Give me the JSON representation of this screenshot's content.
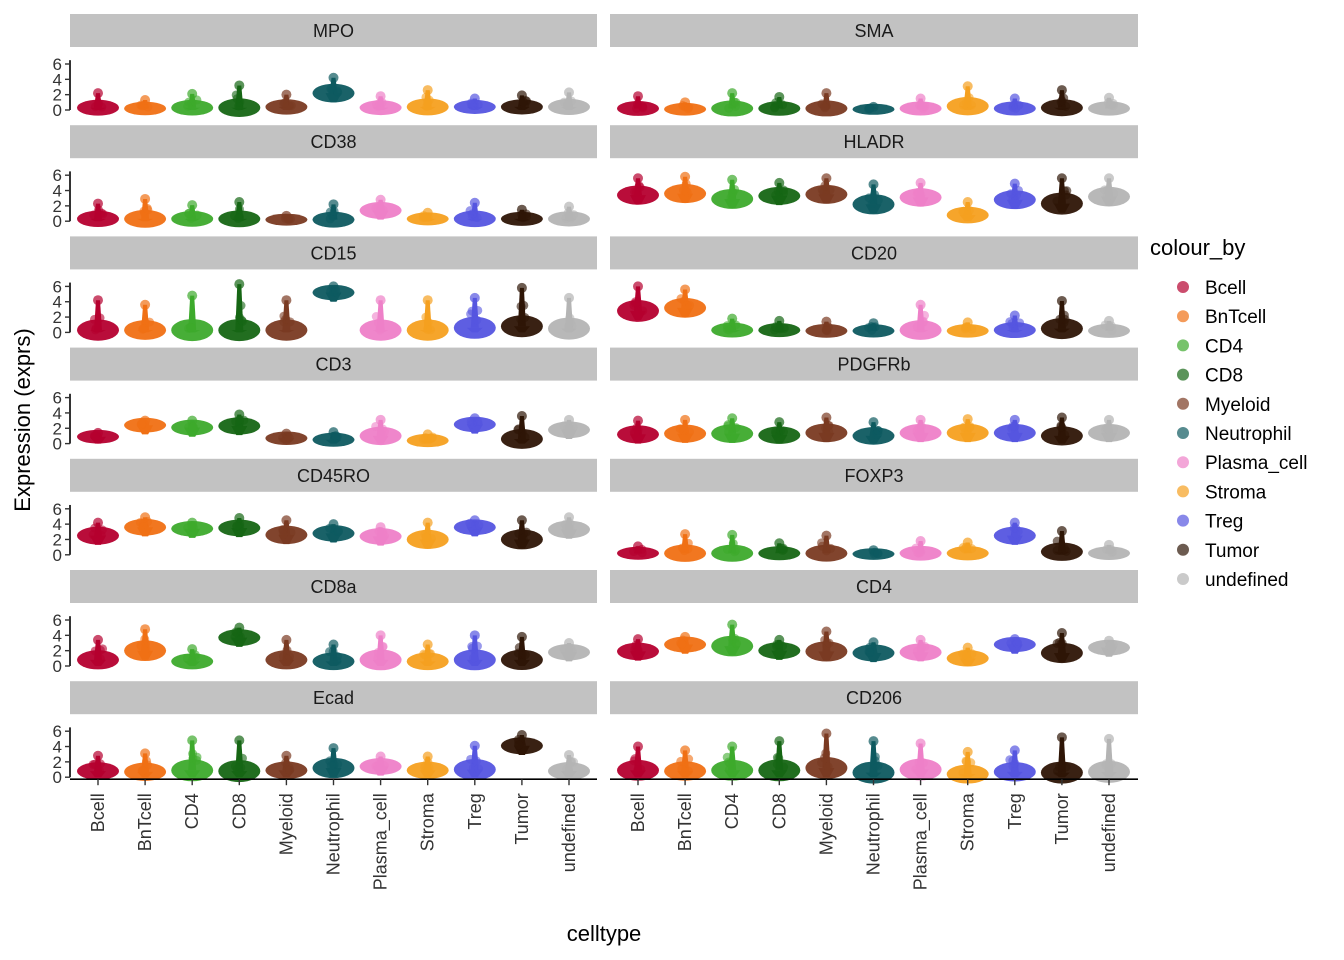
{
  "chart_data": {
    "type": "violin",
    "xlabel": "celltype",
    "ylabel": "Expression (exprs)",
    "ylim": [
      0,
      6.5
    ],
    "yticks": [
      0,
      2,
      4,
      6
    ],
    "facet_layout": {
      "cols": 2,
      "rows": 7
    },
    "categories": [
      "Bcell",
      "BnTcell",
      "CD4",
      "CD8",
      "Myeloid",
      "Neutrophil",
      "Plasma_cell",
      "Stroma",
      "Treg",
      "Tumor",
      "undefined"
    ],
    "legend": {
      "title": "colour_by",
      "placement": "right",
      "entries": [
        {
          "label": "Bcell",
          "color": "#B5002F"
        },
        {
          "label": "BnTcell",
          "color": "#F07014"
        },
        {
          "label": "CD4",
          "color": "#3DAA2C"
        },
        {
          "label": "CD8",
          "color": "#166614"
        },
        {
          "label": "Myeloid",
          "color": "#7A3A22"
        },
        {
          "label": "Neutrophil",
          "color": "#0E5A60"
        },
        {
          "label": "Plasma_cell",
          "color": "#EE80C8"
        },
        {
          "label": "Stroma",
          "color": "#F5A020"
        },
        {
          "label": "Treg",
          "color": "#5555E0"
        },
        {
          "label": "Tumor",
          "color": "#2E1506"
        },
        {
          "label": "undefined",
          "color": "#B4B4B4"
        }
      ]
    },
    "panels": [
      {
        "marker": "MPO",
        "medians": [
          0.3,
          0.2,
          0.3,
          0.3,
          0.4,
          2.2,
          0.3,
          0.4,
          0.4,
          0.4,
          0.4
        ],
        "maxima": [
          2.2,
          1.3,
          2.1,
          3.2,
          2.0,
          4.2,
          1.8,
          2.6,
          1.5,
          1.9,
          2.3
        ]
      },
      {
        "marker": "SMA",
        "medians": [
          0.2,
          0.1,
          0.2,
          0.2,
          0.2,
          0.1,
          0.2,
          0.5,
          0.2,
          0.3,
          0.2
        ],
        "maxima": [
          1.8,
          1.0,
          2.2,
          1.7,
          2.2,
          0.4,
          1.5,
          3.1,
          1.5,
          2.6,
          1.6
        ]
      },
      {
        "marker": "CD38",
        "medians": [
          0.3,
          0.3,
          0.3,
          0.3,
          0.2,
          0.2,
          1.4,
          0.3,
          0.3,
          0.3,
          0.3
        ],
        "maxima": [
          2.3,
          2.9,
          2.1,
          2.5,
          0.7,
          2.2,
          2.8,
          1.1,
          2.4,
          1.5,
          1.9
        ]
      },
      {
        "marker": "HLADR",
        "medians": [
          3.4,
          3.6,
          2.9,
          3.3,
          3.5,
          2.2,
          3.1,
          0.8,
          2.8,
          2.3,
          3.2
        ],
        "maxima": [
          5.6,
          5.8,
          5.4,
          5.0,
          5.6,
          4.8,
          5.0,
          2.5,
          4.9,
          5.6,
          5.6
        ]
      },
      {
        "marker": "CD15",
        "medians": [
          0.3,
          0.3,
          0.3,
          0.3,
          0.3,
          5.2,
          0.3,
          0.3,
          0.6,
          0.8,
          0.5
        ],
        "maxima": [
          4.2,
          3.6,
          4.8,
          6.3,
          4.2,
          6.0,
          4.2,
          4.2,
          4.5,
          5.8,
          4.5
        ]
      },
      {
        "marker": "CD20",
        "medians": [
          2.8,
          3.2,
          0.3,
          0.3,
          0.2,
          0.2,
          0.3,
          0.2,
          0.3,
          0.5,
          0.2
        ],
        "maxima": [
          6.0,
          5.6,
          1.8,
          1.5,
          1.4,
          1.2,
          3.6,
          1.3,
          2.2,
          4.1,
          1.5
        ]
      },
      {
        "marker": "CD3",
        "medians": [
          0.9,
          2.4,
          2.1,
          2.3,
          0.7,
          0.5,
          1.0,
          0.4,
          2.5,
          0.6,
          1.8
        ],
        "maxima": [
          1.4,
          3.0,
          3.0,
          3.8,
          1.3,
          1.5,
          3.1,
          1.2,
          3.3,
          3.6,
          3.1
        ]
      },
      {
        "marker": "PDGFRb",
        "medians": [
          1.2,
          1.3,
          1.3,
          1.1,
          1.4,
          1.0,
          1.4,
          1.4,
          1.4,
          1.0,
          1.4
        ],
        "maxima": [
          3.0,
          3.1,
          3.3,
          2.8,
          3.4,
          2.8,
          3.1,
          3.2,
          3.1,
          3.4,
          3.1
        ]
      },
      {
        "marker": "CD45RO",
        "medians": [
          2.5,
          3.6,
          3.4,
          3.5,
          2.6,
          2.8,
          2.4,
          2.0,
          3.6,
          2.0,
          3.3
        ],
        "maxima": [
          4.2,
          4.9,
          4.2,
          4.8,
          4.5,
          4.0,
          3.6,
          4.2,
          4.5,
          4.5,
          4.9
        ]
      },
      {
        "marker": "FOXP3",
        "medians": [
          0.2,
          0.2,
          0.2,
          0.2,
          0.2,
          0.1,
          0.2,
          0.2,
          2.5,
          0.4,
          0.2
        ],
        "maxima": [
          1.1,
          2.7,
          2.6,
          1.5,
          2.5,
          0.6,
          1.8,
          1.6,
          4.2,
          3.1,
          1.3
        ]
      },
      {
        "marker": "CD8a",
        "medians": [
          0.8,
          2.0,
          0.6,
          3.7,
          0.8,
          0.6,
          0.8,
          0.6,
          0.8,
          0.8,
          1.8
        ],
        "maxima": [
          3.4,
          4.8,
          2.2,
          5.0,
          3.4,
          2.8,
          4.0,
          2.8,
          4.0,
          3.8,
          3.0
        ]
      },
      {
        "marker": "CD4",
        "medians": [
          1.9,
          2.8,
          2.6,
          2.0,
          1.9,
          1.7,
          1.8,
          1.0,
          2.8,
          1.7,
          2.4
        ],
        "maxima": [
          3.5,
          3.8,
          5.4,
          3.4,
          4.5,
          3.1,
          3.4,
          2.4,
          3.5,
          4.3,
          3.3
        ]
      },
      {
        "marker": "Ecad",
        "medians": [
          0.8,
          0.7,
          0.9,
          0.8,
          0.9,
          1.2,
          1.4,
          0.9,
          1.0,
          4.1,
          0.8
        ],
        "maxima": [
          2.8,
          3.1,
          4.8,
          4.8,
          2.8,
          3.8,
          2.7,
          2.7,
          4.1,
          5.5,
          2.9
        ]
      },
      {
        "marker": "CD206",
        "medians": [
          0.9,
          0.8,
          0.9,
          0.9,
          1.2,
          0.6,
          1.0,
          0.4,
          0.7,
          0.6,
          0.7
        ],
        "maxima": [
          4.0,
          3.5,
          4.0,
          4.7,
          5.7,
          4.7,
          4.4,
          3.3,
          3.5,
          5.2,
          5.0
        ]
      }
    ]
  }
}
